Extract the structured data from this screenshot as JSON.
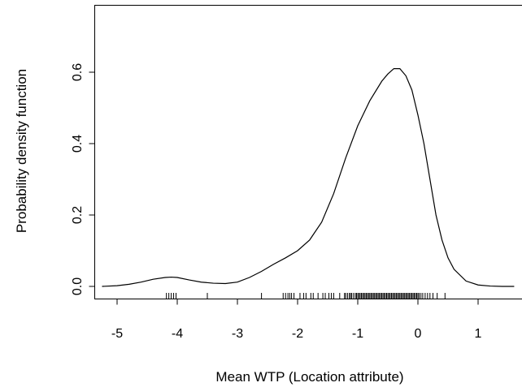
{
  "chart_data": {
    "type": "line",
    "title": "",
    "xlabel": "Mean WTP (Location attribute)",
    "ylabel": "Probability density function",
    "xlim": [
      -5.3,
      1.6
    ],
    "ylim": [
      0,
      0.78
    ],
    "x_ticks": [
      -5,
      -4,
      -3,
      -2,
      -1,
      0,
      1
    ],
    "x_tick_labels": [
      "-5",
      "-4",
      "-3",
      "-2",
      "-1",
      "0",
      "1"
    ],
    "y_ticks": [
      0.0,
      0.2,
      0.4,
      0.6
    ],
    "y_tick_labels": [
      "0.0",
      "0.2",
      "0.4",
      "0.6"
    ],
    "grid": false,
    "legend": "none",
    "series": [
      {
        "x": [
          -5.25,
          -5.0,
          -4.8,
          -4.6,
          -4.4,
          -4.2,
          -4.1,
          -4.0,
          -3.8,
          -3.6,
          -3.4,
          -3.2,
          -3.0,
          -2.8,
          -2.6,
          -2.4,
          -2.2,
          -2.0,
          -1.8,
          -1.6,
          -1.4,
          -1.2,
          -1.0,
          -0.8,
          -0.6,
          -0.5,
          -0.4,
          -0.3,
          -0.2,
          -0.1,
          0.0,
          0.1,
          0.2,
          0.3,
          0.4,
          0.5,
          0.6,
          0.8,
          1.0,
          1.2,
          1.4,
          1.6
        ],
        "y": [
          0.0,
          0.002,
          0.006,
          0.012,
          0.02,
          0.025,
          0.026,
          0.025,
          0.018,
          0.012,
          0.009,
          0.008,
          0.012,
          0.025,
          0.042,
          0.062,
          0.08,
          0.1,
          0.13,
          0.18,
          0.26,
          0.36,
          0.45,
          0.52,
          0.575,
          0.595,
          0.61,
          0.61,
          0.59,
          0.55,
          0.48,
          0.4,
          0.3,
          0.2,
          0.13,
          0.08,
          0.048,
          0.015,
          0.004,
          0.001,
          0.0,
          0.0
        ]
      }
    ],
    "rug": [
      -4.18,
      -4.14,
      -4.1,
      -4.06,
      -4.02,
      -3.5,
      -2.6,
      -2.24,
      -2.2,
      -2.16,
      -2.13,
      -2.1,
      -2.06,
      -1.96,
      -1.9,
      -1.86,
      -1.78,
      -1.74,
      -1.66,
      -1.58,
      -1.54,
      -1.48,
      -1.44,
      -1.4,
      -1.3,
      -1.22,
      -1.2,
      -1.17,
      -1.14,
      -1.12,
      -1.1,
      -1.07,
      -1.04,
      -1.02,
      -1.0,
      -0.98,
      -0.96,
      -0.94,
      -0.92,
      -0.9,
      -0.88,
      -0.86,
      -0.84,
      -0.82,
      -0.8,
      -0.78,
      -0.76,
      -0.74,
      -0.72,
      -0.7,
      -0.68,
      -0.66,
      -0.64,
      -0.62,
      -0.6,
      -0.58,
      -0.56,
      -0.54,
      -0.52,
      -0.5,
      -0.48,
      -0.46,
      -0.44,
      -0.42,
      -0.4,
      -0.38,
      -0.36,
      -0.34,
      -0.32,
      -0.3,
      -0.28,
      -0.26,
      -0.24,
      -0.22,
      -0.2,
      -0.18,
      -0.16,
      -0.14,
      -0.12,
      -0.1,
      -0.08,
      -0.06,
      -0.04,
      -0.02,
      0.0,
      0.02,
      0.05,
      0.08,
      0.12,
      0.16,
      0.2,
      0.25,
      0.32,
      0.45
    ]
  }
}
